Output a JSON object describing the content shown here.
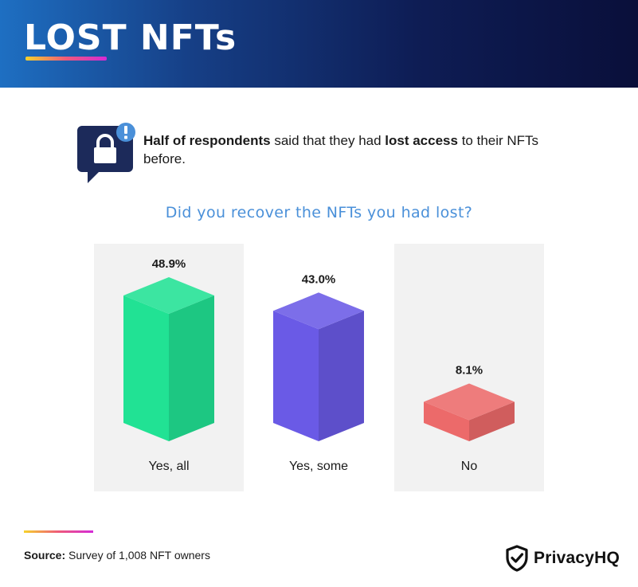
{
  "header": {
    "title": "LOST NFTs"
  },
  "callout": {
    "bold_1": "Half of respondents",
    "text_1": " said that they had ",
    "bold_2": "lost access",
    "text_2": " to their NFTs before."
  },
  "question": "Did you recover the NFTs you had lost?",
  "chart_data": {
    "type": "bar",
    "title": "Did you recover the NFTs you had lost?",
    "categories": [
      "Yes, all",
      "Yes, some",
      "No"
    ],
    "values": [
      48.9,
      43.0,
      8.1
    ],
    "value_labels": [
      "48.9%",
      "43.0%",
      "8.1%"
    ],
    "unit": "%",
    "grid": false,
    "colors": [
      "#21e294",
      "#6a5ae6",
      "#ec6a6a"
    ],
    "panel_background": "#f2f2f2"
  },
  "footer": {
    "source_label": "Source:",
    "source_text": " Survey of 1,008 NFT owners"
  },
  "brand": {
    "name": "PrivacyHQ",
    "icon": "shield-check-icon"
  }
}
